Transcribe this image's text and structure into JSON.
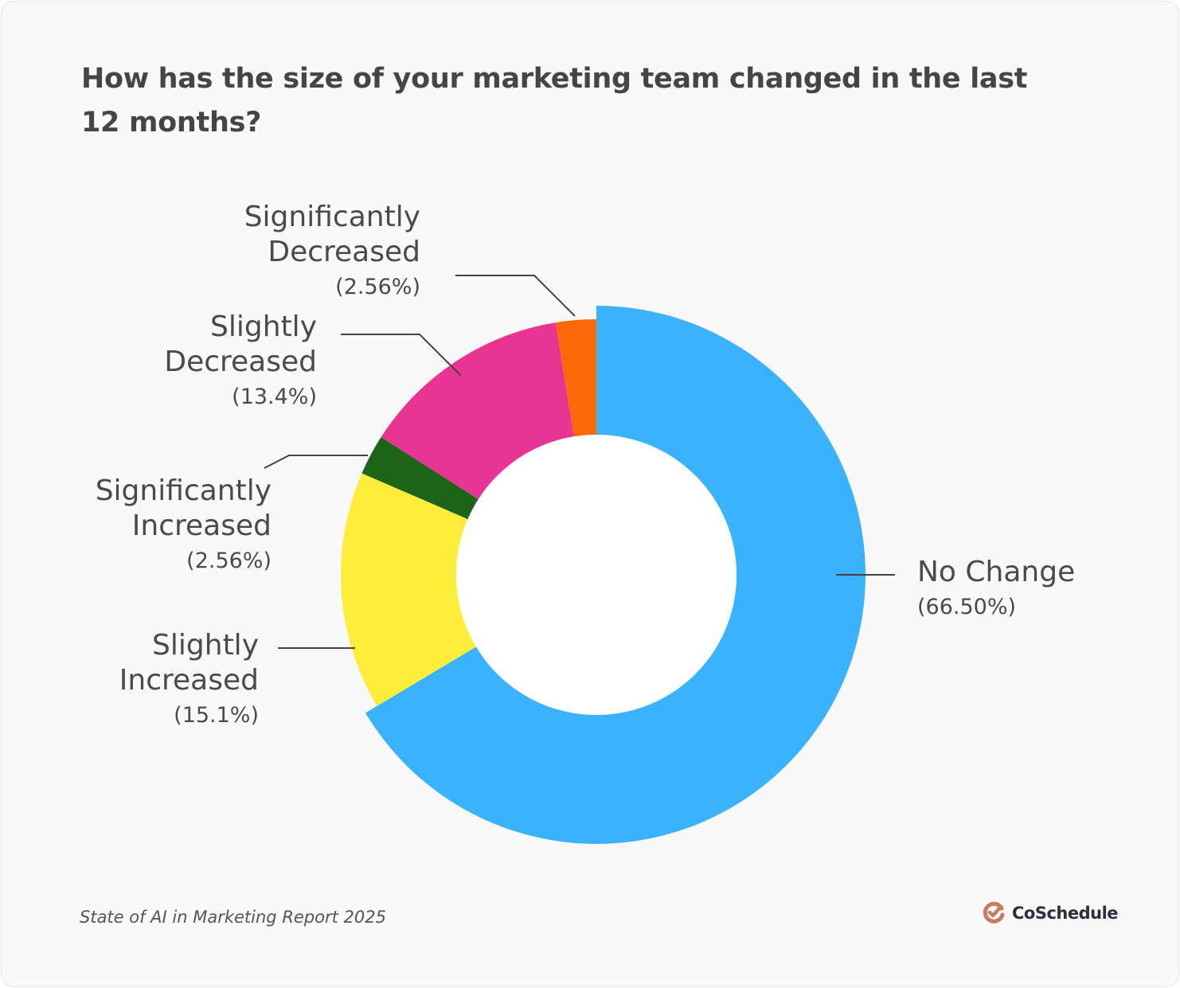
{
  "chart_data": {
    "type": "pie",
    "variant": "donut",
    "title": "How has the size of your marketing team changed in the last 12 months?",
    "slices": [
      {
        "label": "No Change",
        "value": 66.5,
        "display": "(66.50%)",
        "color": "#3bb2fe",
        "exploded": true
      },
      {
        "label": "Slightly Increased",
        "value": 15.1,
        "display": "(15.1%)",
        "color": "#ffed3b"
      },
      {
        "label": "Significantly Increased",
        "value": 2.56,
        "display": "(2.56%)",
        "color": "#1b6418"
      },
      {
        "label": "Slightly Decreased",
        "value": 13.4,
        "display": "(13.4%)",
        "color": "#e83492"
      },
      {
        "label": "Significantly Decreased",
        "value": 2.56,
        "display": "(2.56%)",
        "color": "#fb6807"
      }
    ],
    "legend": "none (direct labels)"
  },
  "footer": {
    "source": "State of AI in Marketing Report 2025",
    "brand": "CoSchedule",
    "brand_color": "#c97a62"
  }
}
